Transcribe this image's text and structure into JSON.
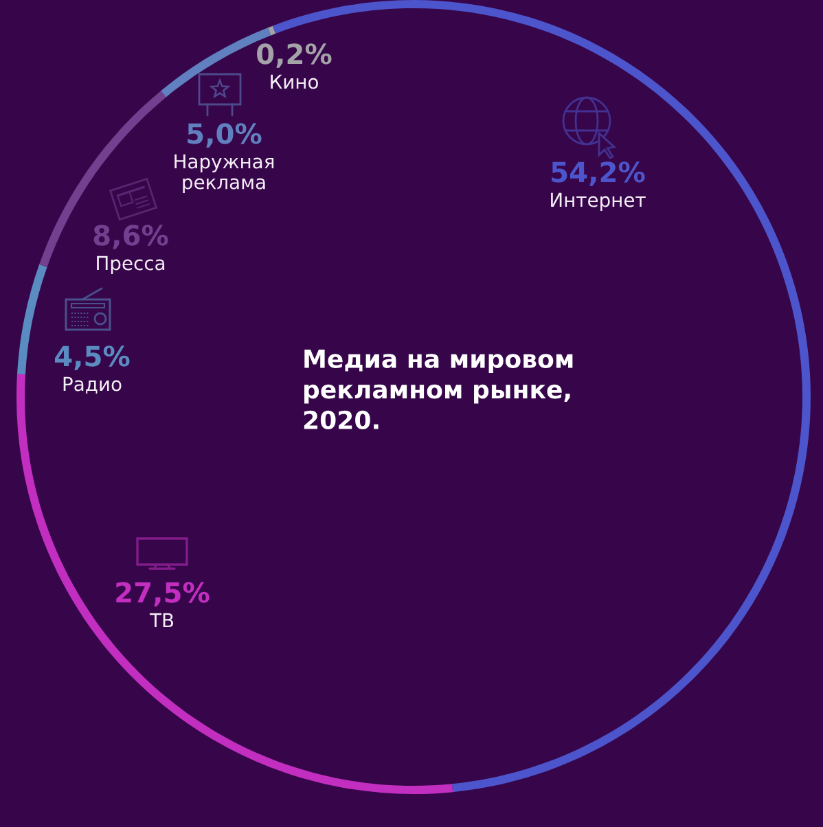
{
  "chart_data": {
    "type": "donut",
    "title": "Медиа на мировом\nрекламном рынке,\n2020.",
    "categories": [
      "Интернет",
      "ТВ",
      "Радио",
      "Пресса",
      "Наружная\nреклама",
      "Кино"
    ],
    "values": [
      54.2,
      27.5,
      4.5,
      8.6,
      5.0,
      0.2
    ],
    "colors": [
      "#4d55cc",
      "#c22fc0",
      "#5a8cc2",
      "#733f8f",
      "#6080c0",
      "#a3a3a8"
    ],
    "value_labels": [
      "54,2%",
      "27,5%",
      "4,5%",
      "8,6%",
      "5,0%",
      "0,2%"
    ]
  }
}
